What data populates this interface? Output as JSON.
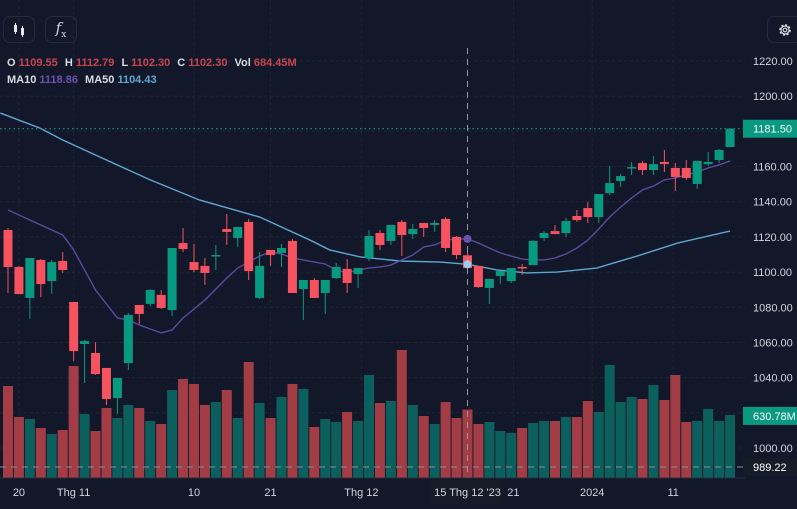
{
  "toolbar": {
    "chart_type_icon": "candlestick-icon",
    "indicators_icon": "fx-icon",
    "settings_icon": "gear-icon"
  },
  "legend": {
    "o_label": "O",
    "o": "1109.55",
    "h_label": "H",
    "h": "1112.79",
    "l_label": "L",
    "l": "1102.30",
    "c_label": "C",
    "c": "1102.30",
    "vol_label": "Vol",
    "vol": "684.45M",
    "ma10_label": "MA10",
    "ma10": "1118.86",
    "ma50_label": "MA50",
    "ma50": "1104.43"
  },
  "colors": {
    "background": "#121829",
    "up": "#089981",
    "down": "#f7525f",
    "vol_up": "#0b605d",
    "vol_down": "#a23c45",
    "ma10": "#5b4a9c",
    "ma50": "#5fa7d0",
    "value_red": "#c9444f",
    "ma10_text": "#6a52b0",
    "ma50_text": "#5fa7d0"
  },
  "chart_data": {
    "type": "candlestick",
    "ylim": [
      989.22,
      1230
    ],
    "price_ticks": [
      "1220.00",
      "1200.00",
      "1160.00",
      "1140.00",
      "1120.00",
      "1100.00",
      "1080.00",
      "1060.00",
      "1040.00",
      "1000.00"
    ],
    "x_ticks": [
      {
        "index": 2,
        "label": "20"
      },
      {
        "index": 7,
        "label": "Thg 11"
      },
      {
        "index": 18,
        "label": "10"
      },
      {
        "index": 25,
        "label": "21"
      },
      {
        "index": 33.3,
        "label": "Thg 12"
      },
      {
        "index": 47.2,
        "label": "21"
      },
      {
        "index": 54.4,
        "label": "2024"
      },
      {
        "index": 61.8,
        "label": "11"
      }
    ],
    "crosshair": {
      "index": 43,
      "label": "15 Thg 12 '23"
    },
    "last_price": {
      "value": 1181.5,
      "label": "1181.50"
    },
    "last_volume": {
      "value": 630.78,
      "label": "630.78M"
    },
    "price_line": {
      "value": 989.22,
      "label": "989.22"
    },
    "ohlc": [
      [
        1123.9,
        1125.1,
        1088.1,
        1102.9
      ],
      [
        1102.9,
        1103.5,
        1087.5,
        1087.5
      ],
      [
        1085.3,
        1108.0,
        1073.3,
        1108.0
      ],
      [
        1106.9,
        1107.5,
        1085.8,
        1093.2
      ],
      [
        1094.9,
        1106.9,
        1087.5,
        1105.7
      ],
      [
        1106.3,
        1111.4,
        1099.5,
        1101.2
      ],
      [
        1083.0,
        1083.0,
        1049.4,
        1055.1
      ],
      [
        1059.1,
        1061.4,
        1036.9,
        1060.8
      ],
      [
        1054.0,
        1060.2,
        1041.5,
        1042.0
      ],
      [
        1045.5,
        1045.5,
        1024.4,
        1027.8
      ],
      [
        1028.4,
        1039.8,
        1019.3,
        1039.8
      ],
      [
        1048.3,
        1076.7,
        1044.3,
        1075.6
      ],
      [
        1081.3,
        1081.3,
        1070.5,
        1076.2
      ],
      [
        1081.9,
        1090.4,
        1080.7,
        1089.8
      ],
      [
        1087.0,
        1089.8,
        1079.0,
        1079.6
      ],
      [
        1078.4,
        1113.7,
        1075.0,
        1113.7
      ],
      [
        1116.5,
        1125.1,
        1111.4,
        1113.1
      ],
      [
        1105.7,
        1116.0,
        1100.0,
        1101.2
      ],
      [
        1103.5,
        1108.0,
        1092.7,
        1099.5
      ],
      [
        1109.1,
        1115.4,
        1101.2,
        1109.7
      ],
      [
        1124.5,
        1133.0,
        1115.4,
        1122.8
      ],
      [
        1119.4,
        1125.6,
        1114.3,
        1125.6
      ],
      [
        1128.5,
        1130.2,
        1095.5,
        1100.6
      ],
      [
        1085.3,
        1111.4,
        1084.7,
        1103.5
      ],
      [
        1112.6,
        1112.6,
        1103.5,
        1109.7
      ],
      [
        1110.9,
        1116.0,
        1102.9,
        1113.7
      ],
      [
        1117.7,
        1118.8,
        1088.1,
        1088.1
      ],
      [
        1090.4,
        1095.5,
        1072.8,
        1095.5
      ],
      [
        1095.5,
        1096.6,
        1085.3,
        1085.3
      ],
      [
        1088.1,
        1095.5,
        1076.2,
        1095.5
      ],
      [
        1096.6,
        1105.2,
        1096.1,
        1102.9
      ],
      [
        1101.8,
        1107.4,
        1088.1,
        1093.8
      ],
      [
        1098.9,
        1102.3,
        1091.0,
        1102.3
      ],
      [
        1108.0,
        1123.9,
        1106.3,
        1120.5
      ],
      [
        1122.2,
        1123.9,
        1112.6,
        1115.4
      ],
      [
        1117.7,
        1126.8,
        1115.4,
        1126.8
      ],
      [
        1128.5,
        1129.6,
        1109.1,
        1121.1
      ],
      [
        1121.6,
        1127.3,
        1118.8,
        1124.5
      ],
      [
        1127.9,
        1127.9,
        1120.0,
        1125.1
      ],
      [
        1126.8,
        1129.6,
        1122.8,
        1127.9
      ],
      [
        1130.2,
        1131.3,
        1111.4,
        1113.7
      ],
      [
        1120.0,
        1120.5,
        1107.4,
        1109.7
      ],
      [
        1109.55,
        1112.79,
        1102.3,
        1102.3
      ],
      [
        1103.5,
        1103.5,
        1091.0,
        1091.5
      ],
      [
        1091.0,
        1096.1,
        1081.9,
        1096.1
      ],
      [
        1097.8,
        1100.6,
        1093.2,
        1100.6
      ],
      [
        1094.9,
        1102.3,
        1093.8,
        1102.3
      ],
      [
        1102.9,
        1104.6,
        1098.4,
        1102.3
      ],
      [
        1104.0,
        1118.2,
        1104.0,
        1117.7
      ],
      [
        1119.4,
        1123.3,
        1117.7,
        1122.2
      ],
      [
        1123.3,
        1126.8,
        1121.6,
        1121.6
      ],
      [
        1122.2,
        1130.8,
        1119.9,
        1129.0
      ],
      [
        1131.9,
        1135.3,
        1128.5,
        1129.6
      ],
      [
        1136.4,
        1139.9,
        1127.9,
        1131.3
      ],
      [
        1131.3,
        1144.4,
        1127.9,
        1144.4
      ],
      [
        1144.9,
        1160.3,
        1143.8,
        1150.6
      ],
      [
        1151.8,
        1155.8,
        1148.4,
        1154.6
      ],
      [
        1159.2,
        1162.6,
        1155.2,
        1159.7
      ],
      [
        1162.0,
        1163.2,
        1155.2,
        1158.0
      ],
      [
        1158.0,
        1166.0,
        1155.2,
        1161.4
      ],
      [
        1162.6,
        1169.4,
        1156.9,
        1161.4
      ],
      [
        1159.2,
        1162.0,
        1146.1,
        1154.1
      ],
      [
        1159.2,
        1163.7,
        1152.4,
        1153.5
      ],
      [
        1150.1,
        1163.2,
        1147.3,
        1163.2
      ],
      [
        1161.4,
        1168.3,
        1160.3,
        1162.6
      ],
      [
        1163.7,
        1170.0,
        1162.0,
        1169.4
      ],
      [
        1171.1,
        1181.9,
        1171.1,
        1181.5
      ]
    ],
    "volume_millions": [
      920,
      610,
      590,
      500,
      440,
      480,
      1120,
      640,
      470,
      700,
      600,
      730,
      700,
      570,
      540,
      880,
      990,
      940,
      730,
      760,
      880,
      600,
      1160,
      750,
      600,
      810,
      940,
      890,
      510,
      590,
      560,
      660,
      570,
      1030,
      750,
      770,
      1280,
      730,
      620,
      540,
      760,
      600,
      684.45,
      540,
      560,
      470,
      450,
      500,
      550,
      570,
      570,
      610,
      610,
      770,
      660,
      1130,
      760,
      810,
      790,
      930,
      780,
      1030,
      560,
      570,
      690,
      570,
      630.78
    ],
    "ma10": [
      [
        1,
        1135.3
      ],
      [
        3,
        1129.6
      ],
      [
        6,
        1121.1
      ],
      [
        7,
        1112.6
      ],
      [
        9,
        1089.8
      ],
      [
        11,
        1073.9
      ],
      [
        12,
        1072.8
      ],
      [
        13,
        1069.9
      ],
      [
        15,
        1065.4
      ],
      [
        16,
        1067.1
      ],
      [
        17,
        1073.9
      ],
      [
        19,
        1084.1
      ],
      [
        21,
        1096.6
      ],
      [
        22,
        1102.3
      ],
      [
        23,
        1105.7
      ],
      [
        24,
        1109.1
      ],
      [
        25,
        1111.4
      ],
      [
        26,
        1110.3
      ],
      [
        27,
        1108.0
      ],
      [
        28,
        1106.9
      ],
      [
        29,
        1105.7
      ],
      [
        30,
        1104.6
      ],
      [
        31,
        1101.2
      ],
      [
        32,
        1099.5
      ],
      [
        33,
        1101.2
      ],
      [
        34,
        1102.3
      ],
      [
        35,
        1102.9
      ],
      [
        36,
        1104.0
      ],
      [
        37,
        1106.9
      ],
      [
        38,
        1109.7
      ],
      [
        39,
        1114.3
      ],
      [
        40,
        1115.4
      ],
      [
        41,
        1118.2
      ],
      [
        42,
        1118.8
      ],
      [
        43,
        1118.86
      ],
      [
        44,
        1116.5
      ],
      [
        45,
        1113.7
      ],
      [
        46,
        1110.9
      ],
      [
        47,
        1109.1
      ],
      [
        48,
        1107.4
      ],
      [
        49,
        1106.9
      ],
      [
        50,
        1106.9
      ],
      [
        51,
        1108.0
      ],
      [
        52,
        1110.3
      ],
      [
        53,
        1113.7
      ],
      [
        54,
        1118.2
      ],
      [
        55,
        1124.5
      ],
      [
        56,
        1131.3
      ],
      [
        57,
        1137.0
      ],
      [
        58,
        1142.1
      ],
      [
        59,
        1146.7
      ],
      [
        60,
        1148.9
      ],
      [
        61,
        1152.4
      ],
      [
        62,
        1153.5
      ],
      [
        63,
        1155.2
      ],
      [
        64,
        1156.9
      ],
      [
        65,
        1159.2
      ],
      [
        66,
        1160.9
      ],
      [
        67,
        1163.2
      ]
    ],
    "ma50": [
      [
        0.3,
        1190.4
      ],
      [
        3.9,
        1181.9
      ],
      [
        6,
        1175.1
      ],
      [
        9.4,
        1165.4
      ],
      [
        14,
        1152.4
      ],
      [
        18.5,
        1141.0
      ],
      [
        24,
        1131.3
      ],
      [
        28.6,
        1118.2
      ],
      [
        30.4,
        1112.6
      ],
      [
        33.2,
        1108.6
      ],
      [
        36.8,
        1106.3
      ],
      [
        40.5,
        1105.7
      ],
      [
        43,
        1104.43
      ],
      [
        45.7,
        1101.2
      ],
      [
        48.4,
        1099.5
      ],
      [
        51.2,
        1100.0
      ],
      [
        54.8,
        1102.3
      ],
      [
        58.5,
        1109.1
      ],
      [
        62.2,
        1116.5
      ],
      [
        67,
        1123.3
      ]
    ]
  }
}
